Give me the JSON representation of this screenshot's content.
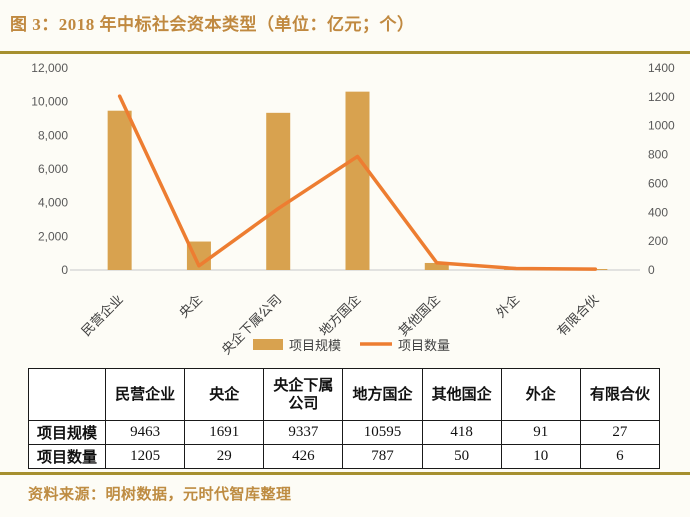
{
  "title": "图 3：2018 年中标社会资本类型（单位：亿元；个）",
  "source": "资料来源：明树数据，元时代智库整理",
  "colors": {
    "bar": "#D8A24F",
    "line": "#ED7D31",
    "accent_gold": "#A6902F",
    "title_text": "#C08940",
    "axis_text": "#595959",
    "axis_line": "#D9D9D9"
  },
  "chart_data": {
    "type": "bar",
    "subtype": "combo-bar-line-dual-axis",
    "categories": [
      "民营企业",
      "央企",
      "央企下属公司",
      "地方国企",
      "其他国企",
      "外企",
      "有限合伙"
    ],
    "series": [
      {
        "name": "项目规模",
        "type": "bar",
        "axis": "left",
        "values": [
          9463,
          1691,
          9337,
          10595,
          418,
          91,
          27
        ]
      },
      {
        "name": "项目数量",
        "type": "line",
        "axis": "right",
        "values": [
          1205,
          29,
          426,
          787,
          50,
          10,
          6
        ]
      }
    ],
    "title": "2018 年中标社会资本类型（单位：亿元；个）",
    "xlabel": "",
    "ylabel": "",
    "left_axis": {
      "min": 0,
      "max": 12000,
      "step": 2000,
      "ticks": [
        0,
        2000,
        4000,
        6000,
        8000,
        10000,
        12000
      ]
    },
    "right_axis": {
      "min": 0,
      "max": 1400,
      "step": 200,
      "ticks": [
        0,
        200,
        400,
        600,
        800,
        1000,
        1200,
        1400
      ]
    },
    "grid": false,
    "legend_position": "bottom"
  },
  "table": {
    "corner": "",
    "columns": [
      "民营企业",
      "央企",
      "央企下属公司",
      "地方国企",
      "其他国企",
      "外企",
      "有限合伙"
    ],
    "rows": [
      {
        "label": "项目规模",
        "values": [
          9463,
          1691,
          9337,
          10595,
          418,
          91,
          27
        ]
      },
      {
        "label": "项目数量",
        "values": [
          1205,
          29,
          426,
          787,
          50,
          10,
          6
        ]
      }
    ]
  }
}
